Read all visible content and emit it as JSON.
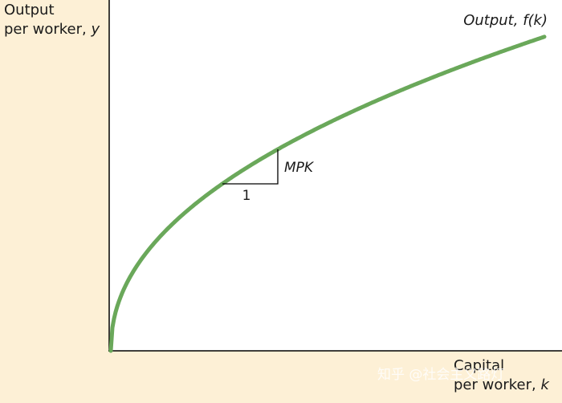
{
  "y_axis_label": {
    "line1": "Output",
    "line2": "per worker,",
    "variable": "y"
  },
  "x_axis_label": {
    "line1": "Capital",
    "line2": "per worker,",
    "variable": "k"
  },
  "curve_label": "Output, f(k)",
  "slope_label": "MPK",
  "run_label": "1",
  "watermark": "知乎 @社会主义路灯"
}
